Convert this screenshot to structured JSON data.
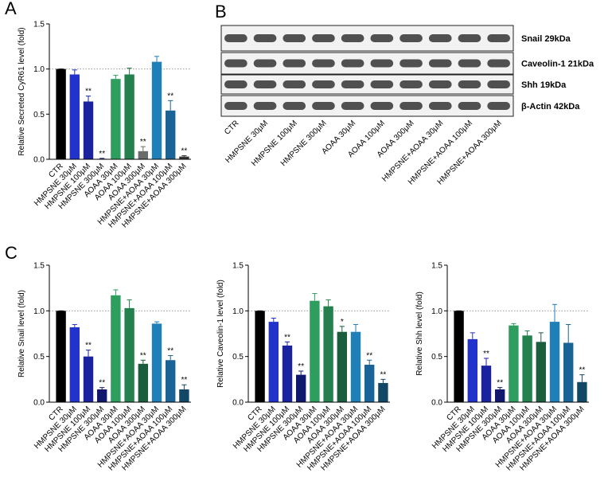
{
  "chart_data": [
    {
      "type": "bar",
      "panel": "A",
      "ylabel": "Relative Secreted CyR61 level (fold)",
      "categories": [
        "CTR",
        "HMPSNE 30μM",
        "HMPSNE 100μM",
        "HMPSNE 300μM",
        "AOAA 30μM",
        "AOAA 100μM",
        "AOAA 300μM",
        "HMPSNE+AOAA 30μM",
        "HMPSNE+AOAA 100μM",
        "HMPSNE+AOAA 300μM"
      ],
      "values": [
        1.0,
        0.94,
        0.64,
        0.005,
        0.89,
        0.94,
        0.09,
        1.08,
        0.54,
        0.03
      ],
      "errors": [
        0,
        0.05,
        0.06,
        0.005,
        0.04,
        0.07,
        0.05,
        0.06,
        0.11,
        0.01
      ],
      "annotations": [
        null,
        null,
        "**",
        "**",
        null,
        null,
        "**",
        null,
        "**",
        "**"
      ],
      "colors": [
        "#000000",
        "#2233cc",
        "#1a22a0",
        "#12176e",
        "#2e9e5e",
        "#24804c",
        "#6b6b6b",
        "#1f7fb8",
        "#1a6396",
        "#333333"
      ],
      "refline": 1.0,
      "ylim": [
        0,
        1.5
      ],
      "yticks": [
        {
          "value": 0,
          "label": "0.0"
        },
        {
          "value": 0.5,
          "label": "0.5"
        },
        {
          "value": 1,
          "label": "1.0"
        },
        {
          "value": 1.5,
          "label": "1.5"
        }
      ]
    },
    {
      "type": "bar",
      "panel": "C",
      "ylabel": "Relative Snail level (fold)",
      "categories": [
        "CTR",
        "HMPSNE 30μM",
        "HMPSNE 100μM",
        "HMPSNE 300μM",
        "AOAA 30μM",
        "AOAA 100μM",
        "AOAA 300μM",
        "HMPSNE+AOAA 30μM",
        "HMPSNE+AOAA 100μM",
        "HMPSNE+AOAA 300μM"
      ],
      "values": [
        1.0,
        0.82,
        0.5,
        0.14,
        1.17,
        1.03,
        0.42,
        0.86,
        0.46,
        0.14
      ],
      "errors": [
        0,
        0.03,
        0.07,
        0.02,
        0.06,
        0.09,
        0.04,
        0.02,
        0.05,
        0.05
      ],
      "annotations": [
        null,
        null,
        "**",
        "**",
        null,
        null,
        "**",
        null,
        "**",
        "**"
      ],
      "colors": [
        "#000000",
        "#2233cc",
        "#1a22a0",
        "#12176e",
        "#2e9e5e",
        "#24804c",
        "#1a5e3e",
        "#1f7fb8",
        "#1a6396",
        "#124766"
      ],
      "refline": 1.0,
      "ylim": [
        0,
        1.5
      ],
      "yticks": [
        {
          "value": 0,
          "label": "0.0"
        },
        {
          "value": 0.5,
          "label": "0.5"
        },
        {
          "value": 1,
          "label": "1.0"
        },
        {
          "value": 1.5,
          "label": "1.5"
        }
      ]
    },
    {
      "type": "bar",
      "ylabel": "Relative Caveolin-1 level (fold)",
      "categories": [
        "CTR",
        "HMPSNE 30μM",
        "HMPSNE 100μM",
        "HMPSNE 300μM",
        "AOAA 30μM",
        "AOAA 100μM",
        "AOAA 300μM",
        "HMPSNE+AOAA 30μM",
        "HMPSNE+AOAA 100μM",
        "HMPSNE+AOAA 300μM"
      ],
      "values": [
        1.0,
        0.88,
        0.62,
        0.3,
        1.11,
        1.05,
        0.77,
        0.77,
        0.41,
        0.21
      ],
      "errors": [
        0,
        0.04,
        0.04,
        0.04,
        0.08,
        0.07,
        0.06,
        0.08,
        0.05,
        0.04
      ],
      "annotations": [
        null,
        null,
        "**",
        "**",
        null,
        null,
        "*",
        null,
        "**",
        "**"
      ],
      "colors": [
        "#000000",
        "#2233cc",
        "#1a22a0",
        "#12176e",
        "#2e9e5e",
        "#24804c",
        "#1a5e3e",
        "#1f7fb8",
        "#1a6396",
        "#124766"
      ],
      "refline": 1.0,
      "ylim": [
        0,
        1.5
      ],
      "yticks": [
        {
          "value": 0,
          "label": "0.0"
        },
        {
          "value": 0.5,
          "label": "0.5"
        },
        {
          "value": 1,
          "label": "1.0"
        },
        {
          "value": 1.5,
          "label": "1.5"
        }
      ]
    },
    {
      "type": "bar",
      "ylabel": "Relative Shh level (fold)",
      "categories": [
        "CTR",
        "HMPSNE 30μM",
        "HMPSNE 100μM",
        "HMPSNE 300μM",
        "AOAA 30μM",
        "AOAA 100μM",
        "AOAA 300μM",
        "HMPSNE+AOAA 30μM",
        "HMPSNE+AOAA 100μM",
        "HMPSNE+AOAA 300μM"
      ],
      "values": [
        1.0,
        0.69,
        0.4,
        0.14,
        0.84,
        0.73,
        0.66,
        0.88,
        0.65,
        0.22
      ],
      "errors": [
        0,
        0.07,
        0.08,
        0.02,
        0.02,
        0.05,
        0.1,
        0.19,
        0.2,
        0.08
      ],
      "annotations": [
        null,
        null,
        "**",
        "**",
        null,
        null,
        null,
        null,
        null,
        "**"
      ],
      "colors": [
        "#000000",
        "#2233cc",
        "#1a22a0",
        "#12176e",
        "#2e9e5e",
        "#24804c",
        "#1a5e3e",
        "#1f7fb8",
        "#1a6396",
        "#124766"
      ],
      "refline": 1.0,
      "ylim": [
        0,
        1.5
      ],
      "yticks": [
        {
          "value": 0,
          "label": "0.0"
        },
        {
          "value": 0.5,
          "label": "0.5"
        },
        {
          "value": 1,
          "label": "1.0"
        },
        {
          "value": 1.5,
          "label": "1.5"
        }
      ]
    }
  ],
  "blot": {
    "panel": "B",
    "rows": [
      "Snail 29kDa",
      "Caveolin-1 21kDa",
      "Shh 19kDa",
      "β-Actin 42kDa"
    ],
    "lanes": [
      "CTR",
      "HMPSNE 30μM",
      "HMPSNE 100μM",
      "HMPSNE 300μM",
      "AOAA 30μM",
      "AOAA 100μM",
      "AOAA 300μM",
      "HMPSNE+AOAA 30μM",
      "HMPSNE+AOAA 100μM",
      "HMPSNE+AOAA 300μM"
    ]
  }
}
